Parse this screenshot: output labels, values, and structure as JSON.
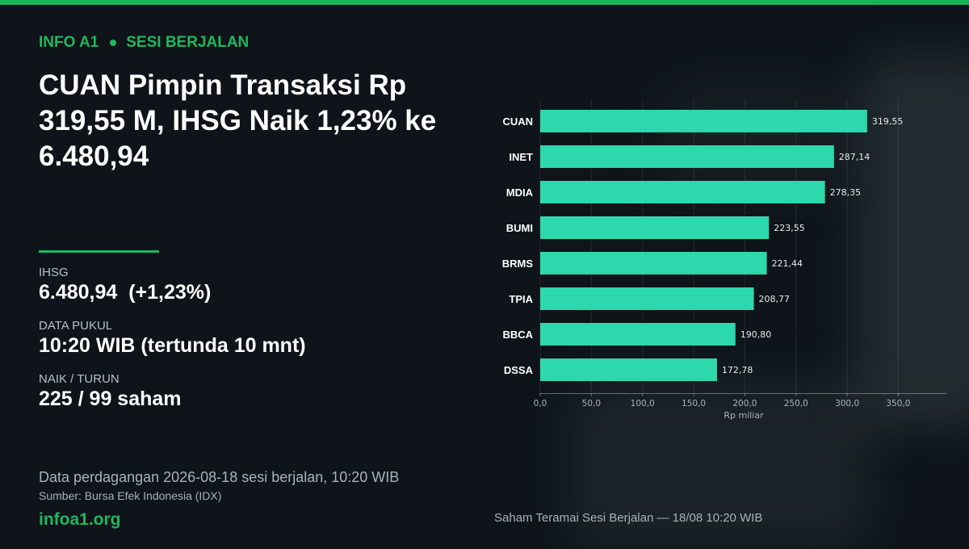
{
  "header": {
    "brand": "INFO A1",
    "section": "SESI BERJALAN",
    "headline": "CUAN Pimpin Transaksi Rp 319,55 M, IHSG Naik 1,23% ke 6.480,94"
  },
  "stats": [
    {
      "label": "IHSG",
      "value": "6.480,94  (+1,23%)"
    },
    {
      "label": "DATA PUKUL",
      "value": "10:20 WIB (tertunda 10 mnt)"
    },
    {
      "label": "NAIK / TURUN",
      "value": "225 / 99 saham"
    }
  ],
  "footer": {
    "line": "Data perdagangan 2026-08-18 sesi berjalan, 10:20 WIB",
    "source": "Sumber: Bursa Efek Indonesia (IDX)",
    "site": "infoa1.org",
    "chart_caption": "Saham Teramai Sesi Berjalan — 18/08 10:20 WIB"
  },
  "colors": {
    "accent": "#1fb85f",
    "bar": "#2ed8ad",
    "background": "#0e1419"
  },
  "chart_data": {
    "type": "bar",
    "orientation": "horizontal",
    "categories": [
      "CUAN",
      "INET",
      "MDIA",
      "BUMI",
      "BRMS",
      "TPIA",
      "BBCA",
      "DSSA"
    ],
    "values": [
      319.55,
      287.14,
      278.35,
      223.55,
      221.44,
      208.77,
      190.8,
      172.78
    ],
    "value_labels": [
      "319,55",
      "287,14",
      "278,35",
      "223,55",
      "221,44",
      "208,77",
      "190,80",
      "172,78"
    ],
    "xlabel": "Rp miliar",
    "xticks": [
      0,
      50,
      100,
      150,
      200,
      250,
      300,
      350
    ],
    "xtick_labels": [
      "0,0",
      "50,0",
      "100,0",
      "150,0",
      "200,0",
      "250,0",
      "300,0",
      "350,0"
    ],
    "xlim": [
      0,
      397
    ],
    "grid": true
  }
}
